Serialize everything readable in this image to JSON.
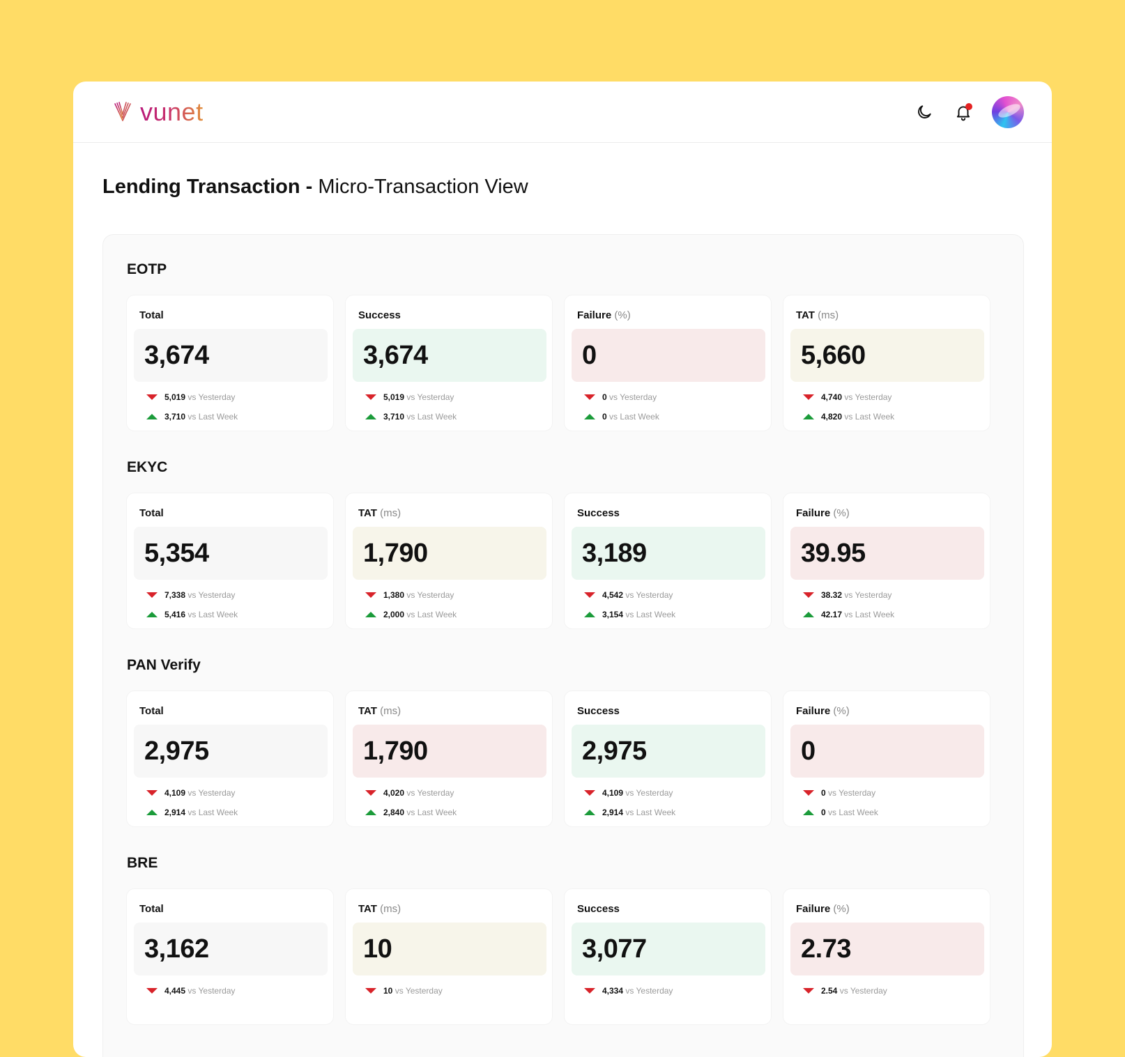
{
  "app": {
    "brand": "vunet",
    "title_strong": "Lending Transaction -",
    "title_light": "Micro-Transaction View"
  },
  "colors": {
    "background": "#FFDC66",
    "down": "#d8232a",
    "up": "#1b9b3a"
  },
  "icons": [
    "dark-mode-icon",
    "notification-bell-icon",
    "user-avatar"
  ],
  "sections": [
    {
      "title": "EOTP",
      "cards": [
        {
          "label": "Total",
          "unit": "",
          "value": "3,674",
          "tone": "neutral",
          "yest": "5,019",
          "yest_label": "vs Yesterday",
          "week": "3,710",
          "week_label": "vs Last Week"
        },
        {
          "label": "Success",
          "unit": "",
          "value": "3,674",
          "tone": "green",
          "yest": "5,019",
          "yest_label": "vs Yesterday",
          "week": "3,710",
          "week_label": "vs Last Week"
        },
        {
          "label": "Failure",
          "unit": "(%)",
          "value": "0",
          "tone": "red",
          "yest": "0",
          "yest_label": "vs Yesterday",
          "week": "0",
          "week_label": "vs Last Week"
        },
        {
          "label": "TAT",
          "unit": "(ms)",
          "value": "5,660",
          "tone": "yellow",
          "yest": "4,740",
          "yest_label": "vs Yesterday",
          "week": "4,820",
          "week_label": "vs Last Week"
        }
      ]
    },
    {
      "title": "EKYC",
      "cards": [
        {
          "label": "Total",
          "unit": "",
          "value": "5,354",
          "tone": "neutral",
          "yest": "7,338",
          "yest_label": "vs Yesterday",
          "week": "5,416",
          "week_label": "vs Last Week"
        },
        {
          "label": "TAT",
          "unit": "(ms)",
          "value": "1,790",
          "tone": "yellow",
          "yest": "1,380",
          "yest_label": "vs Yesterday",
          "week": "2,000",
          "week_label": "vs Last Week"
        },
        {
          "label": "Success",
          "unit": "",
          "value": "3,189",
          "tone": "green",
          "yest": "4,542",
          "yest_label": "vs Yesterday",
          "week": "3,154",
          "week_label": "vs Last Week"
        },
        {
          "label": "Failure",
          "unit": "(%)",
          "value": "39.95",
          "tone": "red",
          "yest": "38.32",
          "yest_label": "vs Yesterday",
          "week": "42.17",
          "week_label": "vs Last Week"
        }
      ]
    },
    {
      "title": "PAN Verify",
      "cards": [
        {
          "label": "Total",
          "unit": "",
          "value": "2,975",
          "tone": "neutral",
          "yest": "4,109",
          "yest_label": "vs Yesterday",
          "week": "2,914",
          "week_label": "vs Last Week"
        },
        {
          "label": "TAT",
          "unit": "(ms)",
          "value": "1,790",
          "tone": "red",
          "yest": "4,020",
          "yest_label": "vs Yesterday",
          "week": "2,840",
          "week_label": "vs Last Week"
        },
        {
          "label": "Success",
          "unit": "",
          "value": "2,975",
          "tone": "green",
          "yest": "4,109",
          "yest_label": "vs Yesterday",
          "week": "2,914",
          "week_label": "vs Last Week"
        },
        {
          "label": "Failure",
          "unit": "(%)",
          "value": "0",
          "tone": "red",
          "yest": "0",
          "yest_label": "vs Yesterday",
          "week": "0",
          "week_label": "vs Last Week"
        }
      ]
    },
    {
      "title": "BRE",
      "cards": [
        {
          "label": "Total",
          "unit": "",
          "value": "3,162",
          "tone": "neutral",
          "yest": "4,445",
          "yest_label": "vs Yesterday",
          "week": "",
          "week_label": ""
        },
        {
          "label": "TAT",
          "unit": "(ms)",
          "value": "10",
          "tone": "yellow",
          "yest": "10",
          "yest_label": "vs Yesterday",
          "week": "",
          "week_label": ""
        },
        {
          "label": "Success",
          "unit": "",
          "value": "3,077",
          "tone": "green",
          "yest": "4,334",
          "yest_label": "vs Yesterday",
          "week": "",
          "week_label": ""
        },
        {
          "label": "Failure",
          "unit": "(%)",
          "value": "2.73",
          "tone": "red",
          "yest": "2.54",
          "yest_label": "vs Yesterday",
          "week": "",
          "week_label": ""
        }
      ]
    }
  ]
}
